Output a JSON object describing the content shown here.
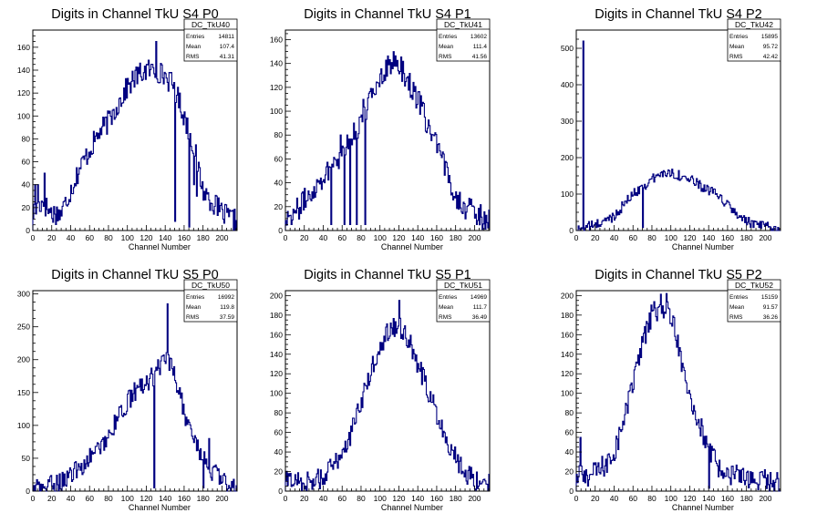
{
  "canvas": {
    "bg": "#ffffff",
    "line_color": "#000080"
  },
  "chart_data": [
    {
      "type": "histogram",
      "title": "Digits in Channel TkU S4 P0",
      "xlabel": "Channel Number",
      "ylabel": "",
      "xlim": [
        0,
        216
      ],
      "ylim": [
        0,
        175
      ],
      "xticks": [
        0,
        20,
        40,
        60,
        80,
        100,
        120,
        140,
        160,
        180,
        200
      ],
      "yticks": [
        0,
        20,
        40,
        60,
        80,
        100,
        120,
        140,
        160
      ],
      "stats": {
        "name": "DC_TkU40",
        "entries": "14811",
        "mean": "107.4",
        "rms": "41.31"
      },
      "profile": [
        [
          0,
          15
        ],
        [
          10,
          25
        ],
        [
          20,
          15
        ],
        [
          30,
          15
        ],
        [
          40,
          35
        ],
        [
          50,
          55
        ],
        [
          60,
          70
        ],
        [
          70,
          85
        ],
        [
          80,
          95
        ],
        [
          90,
          110
        ],
        [
          100,
          125
        ],
        [
          110,
          135
        ],
        [
          120,
          140
        ],
        [
          130,
          140
        ],
        [
          140,
          135
        ],
        [
          150,
          125
        ],
        [
          160,
          100
        ],
        [
          170,
          75
        ],
        [
          180,
          35
        ],
        [
          190,
          25
        ],
        [
          200,
          15
        ],
        [
          210,
          10
        ],
        [
          216,
          8
        ]
      ],
      "spikes": [
        [
          2,
          40
        ],
        [
          5,
          40
        ],
        [
          12,
          50
        ],
        [
          130,
          165
        ],
        [
          150,
          8
        ],
        [
          165,
          3
        ],
        [
          170,
          40
        ],
        [
          173,
          30
        ]
      ],
      "noise": 10
    },
    {
      "type": "histogram",
      "title": "Digits in Channel TkU S4 P1",
      "xlabel": "Channel Number",
      "ylabel": "",
      "xlim": [
        0,
        216
      ],
      "ylim": [
        0,
        168
      ],
      "xticks": [
        0,
        20,
        40,
        60,
        80,
        100,
        120,
        140,
        160,
        180,
        200
      ],
      "yticks": [
        0,
        20,
        40,
        60,
        80,
        100,
        120,
        140,
        160
      ],
      "stats": {
        "name": "DC_TkU41",
        "entries": "13602",
        "mean": "111.4",
        "rms": "41.56"
      },
      "profile": [
        [
          0,
          12
        ],
        [
          10,
          15
        ],
        [
          20,
          25
        ],
        [
          30,
          35
        ],
        [
          40,
          45
        ],
        [
          50,
          55
        ],
        [
          60,
          65
        ],
        [
          70,
          75
        ],
        [
          80,
          90
        ],
        [
          90,
          110
        ],
        [
          100,
          130
        ],
        [
          110,
          140
        ],
        [
          120,
          140
        ],
        [
          130,
          125
        ],
        [
          140,
          110
        ],
        [
          150,
          90
        ],
        [
          160,
          70
        ],
        [
          170,
          50
        ],
        [
          180,
          30
        ],
        [
          190,
          20
        ],
        [
          200,
          15
        ],
        [
          210,
          10
        ],
        [
          216,
          10
        ]
      ],
      "spikes": [
        [
          48,
          5
        ],
        [
          52,
          60
        ],
        [
          58,
          80
        ],
        [
          62,
          5
        ],
        [
          65,
          80
        ],
        [
          68,
          5
        ],
        [
          72,
          90
        ],
        [
          75,
          5
        ],
        [
          78,
          95
        ],
        [
          82,
          110
        ],
        [
          84,
          5
        ]
      ],
      "noise": 10
    },
    {
      "type": "histogram",
      "title": "Digits in Channel TkU S4 P2",
      "xlabel": "Channel Number",
      "ylabel": "",
      "xlim": [
        0,
        216
      ],
      "ylim": [
        0,
        550
      ],
      "xticks": [
        0,
        20,
        40,
        60,
        80,
        100,
        120,
        140,
        160,
        180,
        200
      ],
      "yticks": [
        0,
        100,
        200,
        300,
        400,
        500
      ],
      "stats": {
        "name": "DC_TkU42",
        "entries": "15895",
        "mean": "95.72",
        "rms": "42.42"
      },
      "profile": [
        [
          0,
          0
        ],
        [
          5,
          5
        ],
        [
          10,
          10
        ],
        [
          20,
          15
        ],
        [
          30,
          25
        ],
        [
          40,
          40
        ],
        [
          50,
          70
        ],
        [
          60,
          100
        ],
        [
          70,
          120
        ],
        [
          80,
          140
        ],
        [
          90,
          155
        ],
        [
          100,
          160
        ],
        [
          110,
          150
        ],
        [
          120,
          140
        ],
        [
          130,
          125
        ],
        [
          140,
          110
        ],
        [
          150,
          95
        ],
        [
          160,
          70
        ],
        [
          170,
          45
        ],
        [
          180,
          25
        ],
        [
          190,
          15
        ],
        [
          200,
          10
        ],
        [
          210,
          5
        ],
        [
          216,
          3
        ]
      ],
      "spikes": [
        [
          7,
          520
        ],
        [
          70,
          8
        ]
      ],
      "noise": 14
    },
    {
      "type": "histogram",
      "title": "Digits in Channel TkU S5 P0",
      "xlabel": "Channel Number",
      "ylabel": "",
      "xlim": [
        0,
        216
      ],
      "ylim": [
        0,
        305
      ],
      "xticks": [
        0,
        20,
        40,
        60,
        80,
        100,
        120,
        140,
        160,
        180,
        200
      ],
      "yticks": [
        0,
        50,
        100,
        150,
        200,
        250,
        300
      ],
      "stats": {
        "name": "DC_TkU50",
        "entries": "16992",
        "mean": "119.8",
        "rms": "37.59"
      },
      "profile": [
        [
          0,
          3
        ],
        [
          10,
          5
        ],
        [
          20,
          10
        ],
        [
          30,
          15
        ],
        [
          40,
          25
        ],
        [
          50,
          35
        ],
        [
          60,
          50
        ],
        [
          70,
          65
        ],
        [
          80,
          85
        ],
        [
          90,
          110
        ],
        [
          100,
          135
        ],
        [
          110,
          155
        ],
        [
          120,
          165
        ],
        [
          130,
          180
        ],
        [
          140,
          200
        ],
        [
          150,
          180
        ],
        [
          160,
          120
        ],
        [
          170,
          80
        ],
        [
          180,
          50
        ],
        [
          190,
          30
        ],
        [
          200,
          15
        ],
        [
          210,
          10
        ],
        [
          216,
          8
        ]
      ],
      "spikes": [
        [
          127,
          160
        ],
        [
          128,
          5
        ],
        [
          142,
          285
        ],
        [
          180,
          5
        ],
        [
          186,
          80
        ]
      ],
      "noise": 15
    },
    {
      "type": "histogram",
      "title": "Digits in Channel TkU S5 P1",
      "xlabel": "Channel Number",
      "ylabel": "",
      "xlim": [
        0,
        216
      ],
      "ylim": [
        0,
        205
      ],
      "xticks": [
        0,
        20,
        40,
        60,
        80,
        100,
        120,
        140,
        160,
        180,
        200
      ],
      "yticks": [
        0,
        20,
        40,
        60,
        80,
        100,
        120,
        140,
        160,
        180,
        200
      ],
      "stats": {
        "name": "DC_TkU51",
        "entries": "14969",
        "mean": "111.7",
        "rms": "36.49"
      },
      "profile": [
        [
          0,
          10
        ],
        [
          10,
          12
        ],
        [
          20,
          10
        ],
        [
          30,
          10
        ],
        [
          40,
          15
        ],
        [
          50,
          25
        ],
        [
          60,
          40
        ],
        [
          70,
          60
        ],
        [
          80,
          90
        ],
        [
          90,
          120
        ],
        [
          100,
          150
        ],
        [
          110,
          165
        ],
        [
          120,
          170
        ],
        [
          130,
          155
        ],
        [
          140,
          130
        ],
        [
          150,
          105
        ],
        [
          160,
          80
        ],
        [
          170,
          55
        ],
        [
          180,
          35
        ],
        [
          190,
          20
        ],
        [
          200,
          12
        ],
        [
          210,
          10
        ],
        [
          216,
          10
        ]
      ],
      "spikes": [
        [
          120,
          195
        ]
      ],
      "noise": 11
    },
    {
      "type": "histogram",
      "title": "Digits in Channel TkU S5 P2",
      "xlabel": "Channel Number",
      "ylabel": "",
      "xlim": [
        0,
        216
      ],
      "ylim": [
        0,
        205
      ],
      "xticks": [
        0,
        20,
        40,
        60,
        80,
        100,
        120,
        140,
        160,
        180,
        200
      ],
      "yticks": [
        0,
        20,
        40,
        60,
        80,
        100,
        120,
        140,
        160,
        180,
        200
      ],
      "stats": {
        "name": "DC_TkU52",
        "entries": "15159",
        "mean": "91.57",
        "rms": "36.26"
      },
      "profile": [
        [
          0,
          15
        ],
        [
          10,
          15
        ],
        [
          20,
          20
        ],
        [
          30,
          25
        ],
        [
          40,
          40
        ],
        [
          50,
          70
        ],
        [
          60,
          110
        ],
        [
          70,
          150
        ],
        [
          80,
          180
        ],
        [
          90,
          190
        ],
        [
          100,
          180
        ],
        [
          110,
          140
        ],
        [
          120,
          100
        ],
        [
          130,
          70
        ],
        [
          140,
          40
        ],
        [
          150,
          25
        ],
        [
          160,
          20
        ],
        [
          170,
          15
        ],
        [
          180,
          12
        ],
        [
          190,
          10
        ],
        [
          200,
          10
        ],
        [
          210,
          8
        ],
        [
          216,
          8
        ]
      ],
      "spikes": [
        [
          4,
          55
        ],
        [
          95,
          202
        ],
        [
          140,
          3
        ]
      ],
      "noise": 12
    }
  ]
}
